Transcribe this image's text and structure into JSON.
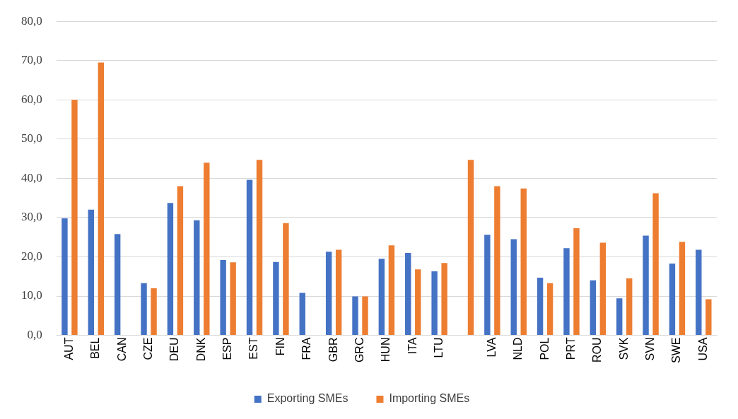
{
  "chart_data": {
    "type": "bar",
    "categories": [
      "AUT",
      "BEL",
      "CAN",
      "CZE",
      "DEU",
      "DNK",
      "ESP",
      "EST",
      "FIN",
      "FRA",
      "GBR",
      "GRC",
      "HUN",
      "ITA",
      "LTU",
      null,
      "LVA",
      "NLD",
      "POL",
      "PRT",
      "ROU",
      "SVK",
      "SVN",
      "SWE",
      "USA"
    ],
    "series": [
      {
        "name": "Exporting SMEs",
        "color": "#4472c4",
        "values": [
          29.8,
          32.0,
          25.8,
          13.3,
          33.7,
          29.3,
          19.2,
          39.6,
          18.7,
          10.8,
          21.3,
          9.9,
          19.5,
          21.0,
          16.3,
          null,
          25.6,
          24.5,
          14.7,
          22.2,
          14.0,
          9.4,
          25.4,
          18.3,
          21.8
        ]
      },
      {
        "name": "Importing SMEs",
        "color": "#ed7d31",
        "values": [
          60.0,
          69.5,
          null,
          12.0,
          38.0,
          44.0,
          18.6,
          44.7,
          28.6,
          null,
          21.8,
          9.9,
          22.9,
          16.8,
          18.4,
          44.7,
          38.0,
          37.4,
          13.3,
          27.3,
          23.6,
          14.5,
          36.2,
          23.8,
          9.2
        ]
      }
    ],
    "ylim": [
      0,
      80
    ],
    "yticks": [
      {
        "value": 0,
        "label": "0,0"
      },
      {
        "value": 10,
        "label": "10,0"
      },
      {
        "value": 20,
        "label": "20,0"
      },
      {
        "value": 30,
        "label": "30,0"
      },
      {
        "value": 40,
        "label": "40,0"
      },
      {
        "value": 50,
        "label": "50,0"
      },
      {
        "value": 60,
        "label": "60,0"
      },
      {
        "value": 70,
        "label": "70,0"
      },
      {
        "value": 80,
        "label": "80,0"
      }
    ],
    "grid": "y",
    "legend": "bottom"
  }
}
